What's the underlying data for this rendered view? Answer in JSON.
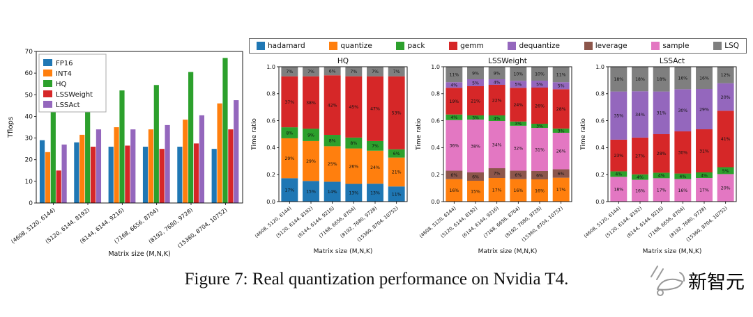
{
  "page": {
    "caption": "Figure 7: Real quantization performance on Nvidia T4.",
    "watermark": "新智元"
  },
  "shared_legend": {
    "items": [
      {
        "label": "hadamard",
        "color": "#1f77b4"
      },
      {
        "label": "quantize",
        "color": "#ff7f0e"
      },
      {
        "label": "pack",
        "color": "#2ca02c"
      },
      {
        "label": "gemm",
        "color": "#d62728"
      },
      {
        "label": "dequantize",
        "color": "#9467bd"
      },
      {
        "label": "leverage",
        "color": "#8c564b"
      },
      {
        "label": "sample",
        "color": "#e377c2"
      },
      {
        "label": "LSQ",
        "color": "#7f7f7f"
      }
    ]
  },
  "chart_data": [
    {
      "id": "tflops",
      "type": "bar",
      "title": "",
      "xlabel": "Matrix size (M,N,K)",
      "ylabel": "Tflops",
      "ylim": [
        0,
        70
      ],
      "yticks": [
        0,
        10,
        20,
        30,
        40,
        50,
        60,
        70
      ],
      "grid": false,
      "legend_position": "upper left",
      "categories": [
        "(4608, 5120, 6144)",
        "(5120, 6144, 8192)",
        "(6144, 6144, 9216)",
        "(7168, 6656, 8704)",
        "(8192, 7680, 9728)",
        "(15360, 8704, 10752)"
      ],
      "series": [
        {
          "name": "FP16",
          "color": "#1f77b4",
          "values": [
            29,
            28,
            26,
            26,
            26,
            25
          ]
        },
        {
          "name": "INT4",
          "color": "#ff7f0e",
          "values": [
            23.5,
            31.5,
            35,
            34,
            38.5,
            46
          ]
        },
        {
          "name": "HQ",
          "color": "#2ca02c",
          "values": [
            47,
            52,
            52,
            54.5,
            60.5,
            67
          ]
        },
        {
          "name": "LSSWeight",
          "color": "#d62728",
          "values": [
            15,
            26,
            26.5,
            25,
            27.5,
            34
          ]
        },
        {
          "name": "LSSAct",
          "color": "#9467bd",
          "values": [
            27,
            34,
            34,
            36,
            40.5,
            47.5
          ]
        }
      ]
    },
    {
      "id": "hq-breakdown",
      "type": "stacked-bar",
      "title": "HQ",
      "xlabel": "Matrix size (M,N,K)",
      "ylabel": "Time ratio",
      "ylim": [
        0,
        1
      ],
      "yticks": [
        0,
        0.2,
        0.4,
        0.6,
        0.8,
        1.0
      ],
      "unit": "%",
      "categories": [
        "(4608, 5120, 6144)",
        "(5120, 6144, 8192)",
        "(6144, 6144, 9216)",
        "(7168, 6656, 8704)",
        "(8192, 7680, 9728)",
        "(15360, 8704, 10752)"
      ],
      "series": [
        {
          "name": "hadamard",
          "color": "#1f77b4",
          "values": [
            17,
            15,
            14,
            13,
            13,
            11
          ]
        },
        {
          "name": "quantize",
          "color": "#ff7f0e",
          "values": [
            29,
            29,
            25,
            26,
            24,
            21
          ]
        },
        {
          "name": "pack",
          "color": "#2ca02c",
          "values": [
            8,
            9,
            8,
            8,
            7,
            6
          ]
        },
        {
          "name": "gemm",
          "color": "#d62728",
          "values": [
            37,
            38,
            42,
            45,
            47,
            53
          ]
        },
        {
          "name": "LSQ",
          "color": "#7f7f7f",
          "values": [
            7,
            7,
            6,
            7,
            7,
            7
          ]
        }
      ]
    },
    {
      "id": "lssweight-breakdown",
      "type": "stacked-bar",
      "title": "LSSWeight",
      "xlabel": "Matrix size (M,N,K)",
      "ylabel": "Time ratio",
      "ylim": [
        0,
        1
      ],
      "yticks": [
        0,
        0.2,
        0.4,
        0.6,
        0.8,
        1.0
      ],
      "unit": "%",
      "categories": [
        "(4608, 5120, 6144)",
        "(5120, 6144, 8192)",
        "(6144, 6144, 9216)",
        "(7168, 6656, 8704)",
        "(8192, 7680, 9728)",
        "(15360, 8704, 10752)"
      ],
      "series": [
        {
          "name": "quantize",
          "color": "#ff7f0e",
          "values": [
            16,
            15,
            17,
            16,
            16,
            17
          ]
        },
        {
          "name": "leverage",
          "color": "#8c564b",
          "values": [
            6,
            6,
            7,
            6,
            6,
            6
          ]
        },
        {
          "name": "sample",
          "color": "#e377c2",
          "values": [
            36,
            38,
            34,
            32,
            31,
            26
          ]
        },
        {
          "name": "pack",
          "color": "#2ca02c",
          "values": [
            4,
            3,
            4,
            3,
            3,
            3
          ]
        },
        {
          "name": "gemm",
          "color": "#d62728",
          "values": [
            19,
            21,
            22,
            24,
            26,
            28
          ]
        },
        {
          "name": "dequantize",
          "color": "#9467bd",
          "values": [
            4,
            5,
            4,
            5,
            5,
            5
          ]
        },
        {
          "name": "LSQ",
          "color": "#7f7f7f",
          "values": [
            11,
            9,
            9,
            10,
            10,
            11
          ]
        }
      ]
    },
    {
      "id": "lssact-breakdown",
      "type": "stacked-bar",
      "title": "LSSAct",
      "xlabel": "Matrix size (M,N,K)",
      "ylabel": "Time ratio",
      "ylim": [
        0,
        1
      ],
      "yticks": [
        0,
        0.2,
        0.4,
        0.6,
        0.8,
        1.0
      ],
      "unit": "%",
      "categories": [
        "(4608, 5120, 6144)",
        "(5120, 6144, 8192)",
        "(6144, 6144, 9216)",
        "(7168, 6656, 8704)",
        "(8192, 7680, 9728)",
        "(15360, 8704, 10752)"
      ],
      "series": [
        {
          "name": "sample",
          "color": "#e377c2",
          "values": [
            18,
            16,
            17,
            16,
            17,
            20
          ]
        },
        {
          "name": "pack",
          "color": "#2ca02c",
          "values": [
            4,
            4,
            4,
            4,
            4,
            5
          ]
        },
        {
          "name": "gemm",
          "color": "#d62728",
          "values": [
            23,
            27,
            28,
            30,
            31,
            41
          ]
        },
        {
          "name": "dequantize",
          "color": "#9467bd",
          "values": [
            35,
            34,
            31,
            30,
            29,
            20
          ]
        },
        {
          "name": "LSQ",
          "color": "#7f7f7f",
          "values": [
            18,
            18,
            18,
            16,
            16,
            12
          ]
        }
      ]
    }
  ]
}
